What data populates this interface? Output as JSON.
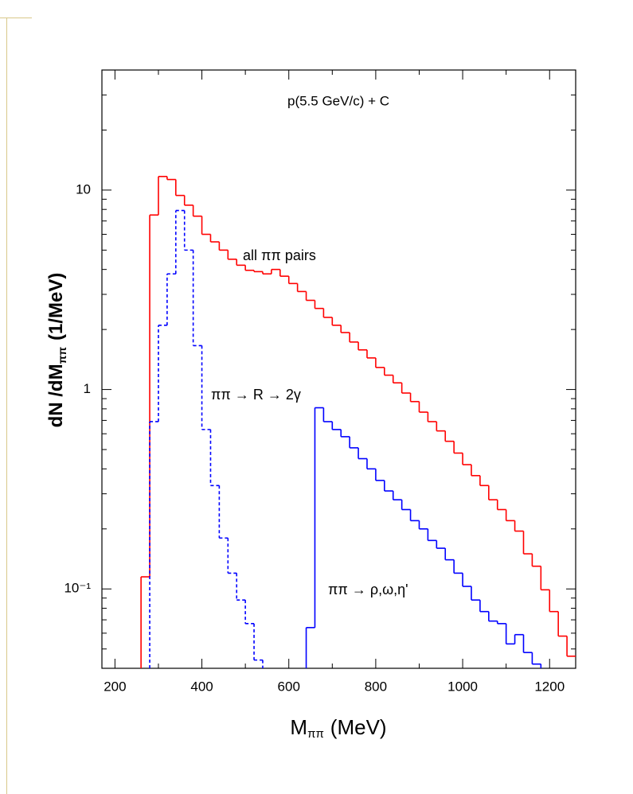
{
  "chart_data": {
    "type": "histogram",
    "title": "p(5.5 GeV/c) + C",
    "xlabel": {
      "main": "M",
      "sub": "ππ",
      "unit": "(MeV)"
    },
    "ylabel": {
      "main": "dN /dM",
      "sub": "ππ",
      "unit": "(1/MeV)"
    },
    "xlim": [
      170,
      1260
    ],
    "ylim": [
      0.04,
      40
    ],
    "log_y": true,
    "xticks": [
      200,
      400,
      600,
      800,
      1000,
      1200
    ],
    "yticks": [
      {
        "value": 0.1,
        "label": "10⁻¹"
      },
      1,
      10
    ],
    "bins": [
      260,
      280,
      300,
      320,
      340,
      360,
      380,
      400,
      420,
      440,
      460,
      480,
      500,
      520,
      540,
      560,
      580,
      600,
      620,
      640,
      660,
      680,
      700,
      720,
      740,
      760,
      780,
      800,
      820,
      840,
      860,
      880,
      900,
      920,
      940,
      960,
      980,
      1000,
      1020,
      1040,
      1060,
      1080,
      1100,
      1120,
      1140,
      1160,
      1180,
      1200,
      1220,
      1240,
      1260
    ],
    "series": [
      {
        "name": "all ππ pairs",
        "color": "#ff0000",
        "linestyle": "solid",
        "values": [
          0.115,
          7.5,
          11.7,
          11.3,
          9.4,
          8.4,
          7.4,
          6.0,
          5.5,
          5.0,
          4.5,
          4.2,
          3.96,
          3.9,
          3.8,
          4.0,
          3.7,
          3.4,
          3.1,
          2.8,
          2.55,
          2.3,
          2.1,
          1.93,
          1.73,
          1.58,
          1.44,
          1.29,
          1.18,
          1.08,
          0.96,
          0.87,
          0.77,
          0.69,
          0.62,
          0.55,
          0.48,
          0.42,
          0.37,
          0.33,
          0.28,
          0.25,
          0.22,
          0.195,
          0.15,
          0.13,
          0.099,
          0.077,
          0.058,
          0.046
        ]
      },
      {
        "name": "ππ → R → 2γ",
        "color": "#0000ff",
        "linestyle": "dashed",
        "values": [
          null,
          0.69,
          2.1,
          3.8,
          7.9,
          5.0,
          1.66,
          0.63,
          0.33,
          0.18,
          0.12,
          0.088,
          0.067,
          0.044,
          null,
          null,
          null,
          null,
          null,
          null,
          null,
          null,
          null,
          null,
          null,
          null,
          null,
          null,
          null,
          null,
          null,
          null,
          null,
          null,
          null,
          null,
          null,
          null,
          null,
          null,
          null,
          null,
          null,
          null,
          null,
          null,
          null,
          null,
          null,
          null
        ]
      },
      {
        "name": "ππ → ρ,ω,η'",
        "color": "#0000ff",
        "linestyle": "solid",
        "values": [
          null,
          null,
          null,
          null,
          null,
          null,
          null,
          null,
          null,
          null,
          null,
          null,
          null,
          null,
          null,
          null,
          null,
          null,
          null,
          0.064,
          0.81,
          0.69,
          0.63,
          0.58,
          0.51,
          0.45,
          0.4,
          0.35,
          0.31,
          0.28,
          0.25,
          0.22,
          0.2,
          0.175,
          0.16,
          0.14,
          0.12,
          0.103,
          0.088,
          0.077,
          0.069,
          0.067,
          0.053,
          0.059,
          0.048,
          0.042,
          null,
          null,
          null,
          null
        ]
      }
    ]
  }
}
